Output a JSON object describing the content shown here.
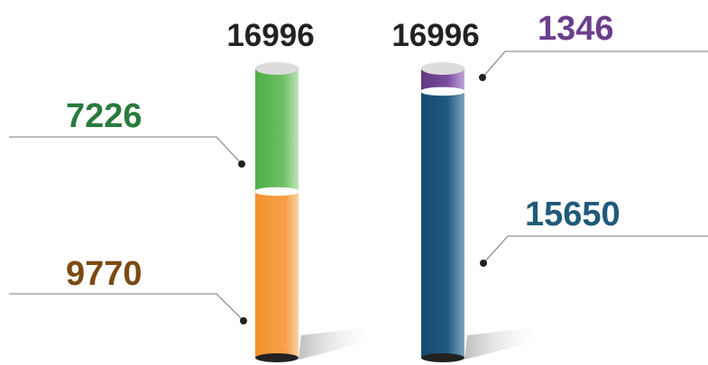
{
  "chart_data": {
    "type": "bar",
    "stacked": true,
    "style": "3d-cylinder",
    "columns": [
      {
        "total": 16996,
        "total_label": "16996",
        "segments": [
          {
            "value": 9770,
            "label": "9770",
            "color": "#f6a04b",
            "label_color": "#7a4a12"
          },
          {
            "value": 7226,
            "label": "7226",
            "color": "#66bd5c",
            "label_color": "#2a7a3f"
          }
        ]
      },
      {
        "total": 16996,
        "total_label": "16996",
        "segments": [
          {
            "value": 15650,
            "label": "15650",
            "color": "#1f5a82",
            "label_color": "#1f5a7a"
          },
          {
            "value": 1346,
            "label": "1346",
            "color": "#7a4a9d",
            "label_color": "#6a3f8c"
          }
        ]
      }
    ],
    "title": "",
    "xlabel": "",
    "ylabel": "",
    "grid": false,
    "legend": "none"
  },
  "colors": {
    "total_label": "#222222",
    "leader_line": "#777777",
    "leader_dot": "#222222",
    "cap_top": "#dcdcdc",
    "cap_bottom": "#222222"
  }
}
